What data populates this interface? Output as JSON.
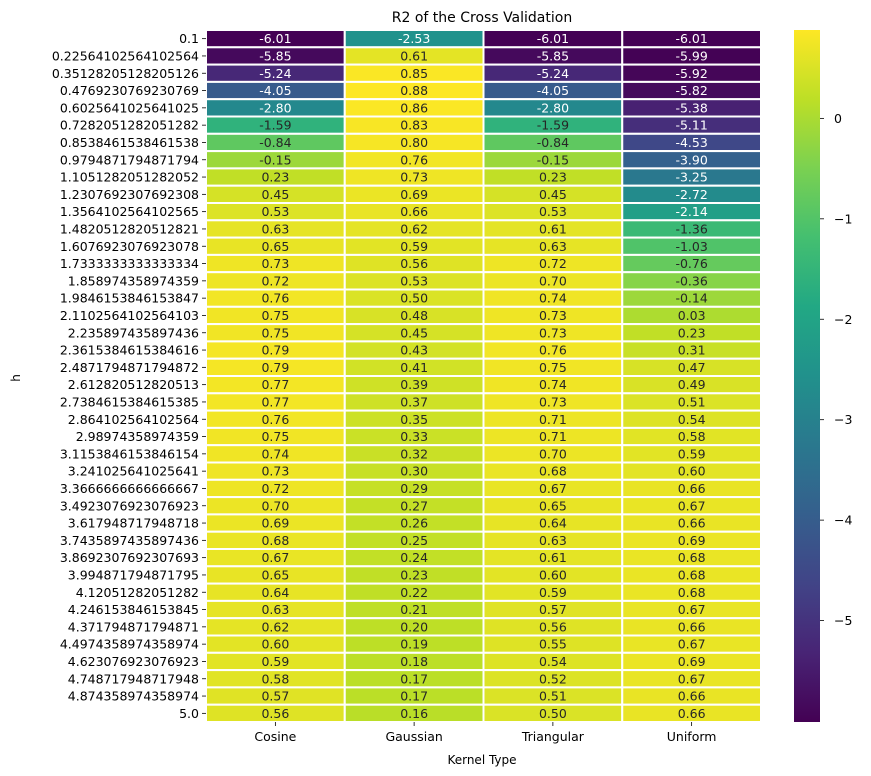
{
  "chart_data": {
    "type": "heatmap",
    "title": "R2 of the Cross Validation",
    "xlabel": "Kernel Type",
    "ylabel": "h",
    "x_categories": [
      "Cosine",
      "Gaussian",
      "Triangular",
      "Uniform"
    ],
    "y_categories": [
      "0.1",
      "0.22564102564102564",
      "0.35128205128205126",
      "0.4769230769230769",
      "0.6025641025641025",
      "0.7282051282051282",
      "0.8538461538461538",
      "0.9794871794871794",
      "1.1051282051282052",
      "1.2307692307692308",
      "1.3564102564102565",
      "1.4820512820512821",
      "1.6076923076923078",
      "1.7333333333333334",
      "1.858974358974359",
      "1.9846153846153847",
      "2.1102564102564103",
      "2.235897435897436",
      "2.3615384615384616",
      "2.4871794871794872",
      "2.612820512820513",
      "2.7384615384615385",
      "2.864102564102564",
      "2.98974358974359",
      "3.1153846153846154",
      "3.241025641025641",
      "3.3666666666666667",
      "3.4923076923076923",
      "3.617948717948718",
      "3.7435897435897436",
      "3.8692307692307693",
      "3.994871794871795",
      "4.12051282051282",
      "4.246153846153845",
      "4.371794871794871",
      "4.4974358974358974",
      "4.623076923076923",
      "4.748717948717948",
      "4.874358974358974",
      "5.0"
    ],
    "values": [
      [
        -6.01,
        -2.53,
        -6.01,
        -6.01
      ],
      [
        -5.85,
        0.61,
        -5.85,
        -5.99
      ],
      [
        -5.24,
        0.85,
        -5.24,
        -5.92
      ],
      [
        -4.05,
        0.88,
        -4.05,
        -5.82
      ],
      [
        -2.8,
        0.86,
        -2.8,
        -5.38
      ],
      [
        -1.59,
        0.83,
        -1.59,
        -5.11
      ],
      [
        -0.84,
        0.8,
        -0.84,
        -4.53
      ],
      [
        -0.15,
        0.76,
        -0.15,
        -3.9
      ],
      [
        0.23,
        0.73,
        0.23,
        -3.25
      ],
      [
        0.45,
        0.69,
        0.45,
        -2.72
      ],
      [
        0.53,
        0.66,
        0.53,
        -2.14
      ],
      [
        0.63,
        0.62,
        0.61,
        -1.36
      ],
      [
        0.65,
        0.59,
        0.63,
        -1.03
      ],
      [
        0.73,
        0.56,
        0.72,
        -0.76
      ],
      [
        0.72,
        0.53,
        0.7,
        -0.36
      ],
      [
        0.76,
        0.5,
        0.74,
        -0.14
      ],
      [
        0.75,
        0.48,
        0.73,
        0.03
      ],
      [
        0.75,
        0.45,
        0.73,
        0.23
      ],
      [
        0.79,
        0.43,
        0.76,
        0.31
      ],
      [
        0.79,
        0.41,
        0.75,
        0.47
      ],
      [
        0.77,
        0.39,
        0.74,
        0.49
      ],
      [
        0.77,
        0.37,
        0.73,
        0.51
      ],
      [
        0.76,
        0.35,
        0.71,
        0.54
      ],
      [
        0.75,
        0.33,
        0.71,
        0.58
      ],
      [
        0.74,
        0.32,
        0.7,
        0.59
      ],
      [
        0.73,
        0.3,
        0.68,
        0.6
      ],
      [
        0.72,
        0.29,
        0.67,
        0.66
      ],
      [
        0.7,
        0.27,
        0.65,
        0.67
      ],
      [
        0.69,
        0.26,
        0.64,
        0.66
      ],
      [
        0.68,
        0.25,
        0.63,
        0.69
      ],
      [
        0.67,
        0.24,
        0.61,
        0.68
      ],
      [
        0.65,
        0.23,
        0.6,
        0.68
      ],
      [
        0.64,
        0.22,
        0.59,
        0.68
      ],
      [
        0.63,
        0.21,
        0.57,
        0.67
      ],
      [
        0.62,
        0.2,
        0.56,
        0.66
      ],
      [
        0.6,
        0.19,
        0.55,
        0.67
      ],
      [
        0.59,
        0.18,
        0.54,
        0.69
      ],
      [
        0.58,
        0.17,
        0.52,
        0.67
      ],
      [
        0.57,
        0.17,
        0.51,
        0.66
      ],
      [
        0.56,
        0.16,
        0.5,
        0.66
      ]
    ],
    "value_format": "2 decimals",
    "colormap": "viridis",
    "color_range": [
      -6.01,
      0.88
    ],
    "colorbar_ticks": [
      0,
      -1,
      -2,
      -3,
      -4,
      -5
    ],
    "colorbar_tick_labels": [
      "0",
      "−1",
      "−2",
      "−3",
      "−4",
      "−5"
    ],
    "cell_separator_color": "#ffffff",
    "legend": "colorbar-right",
    "grid": false
  }
}
